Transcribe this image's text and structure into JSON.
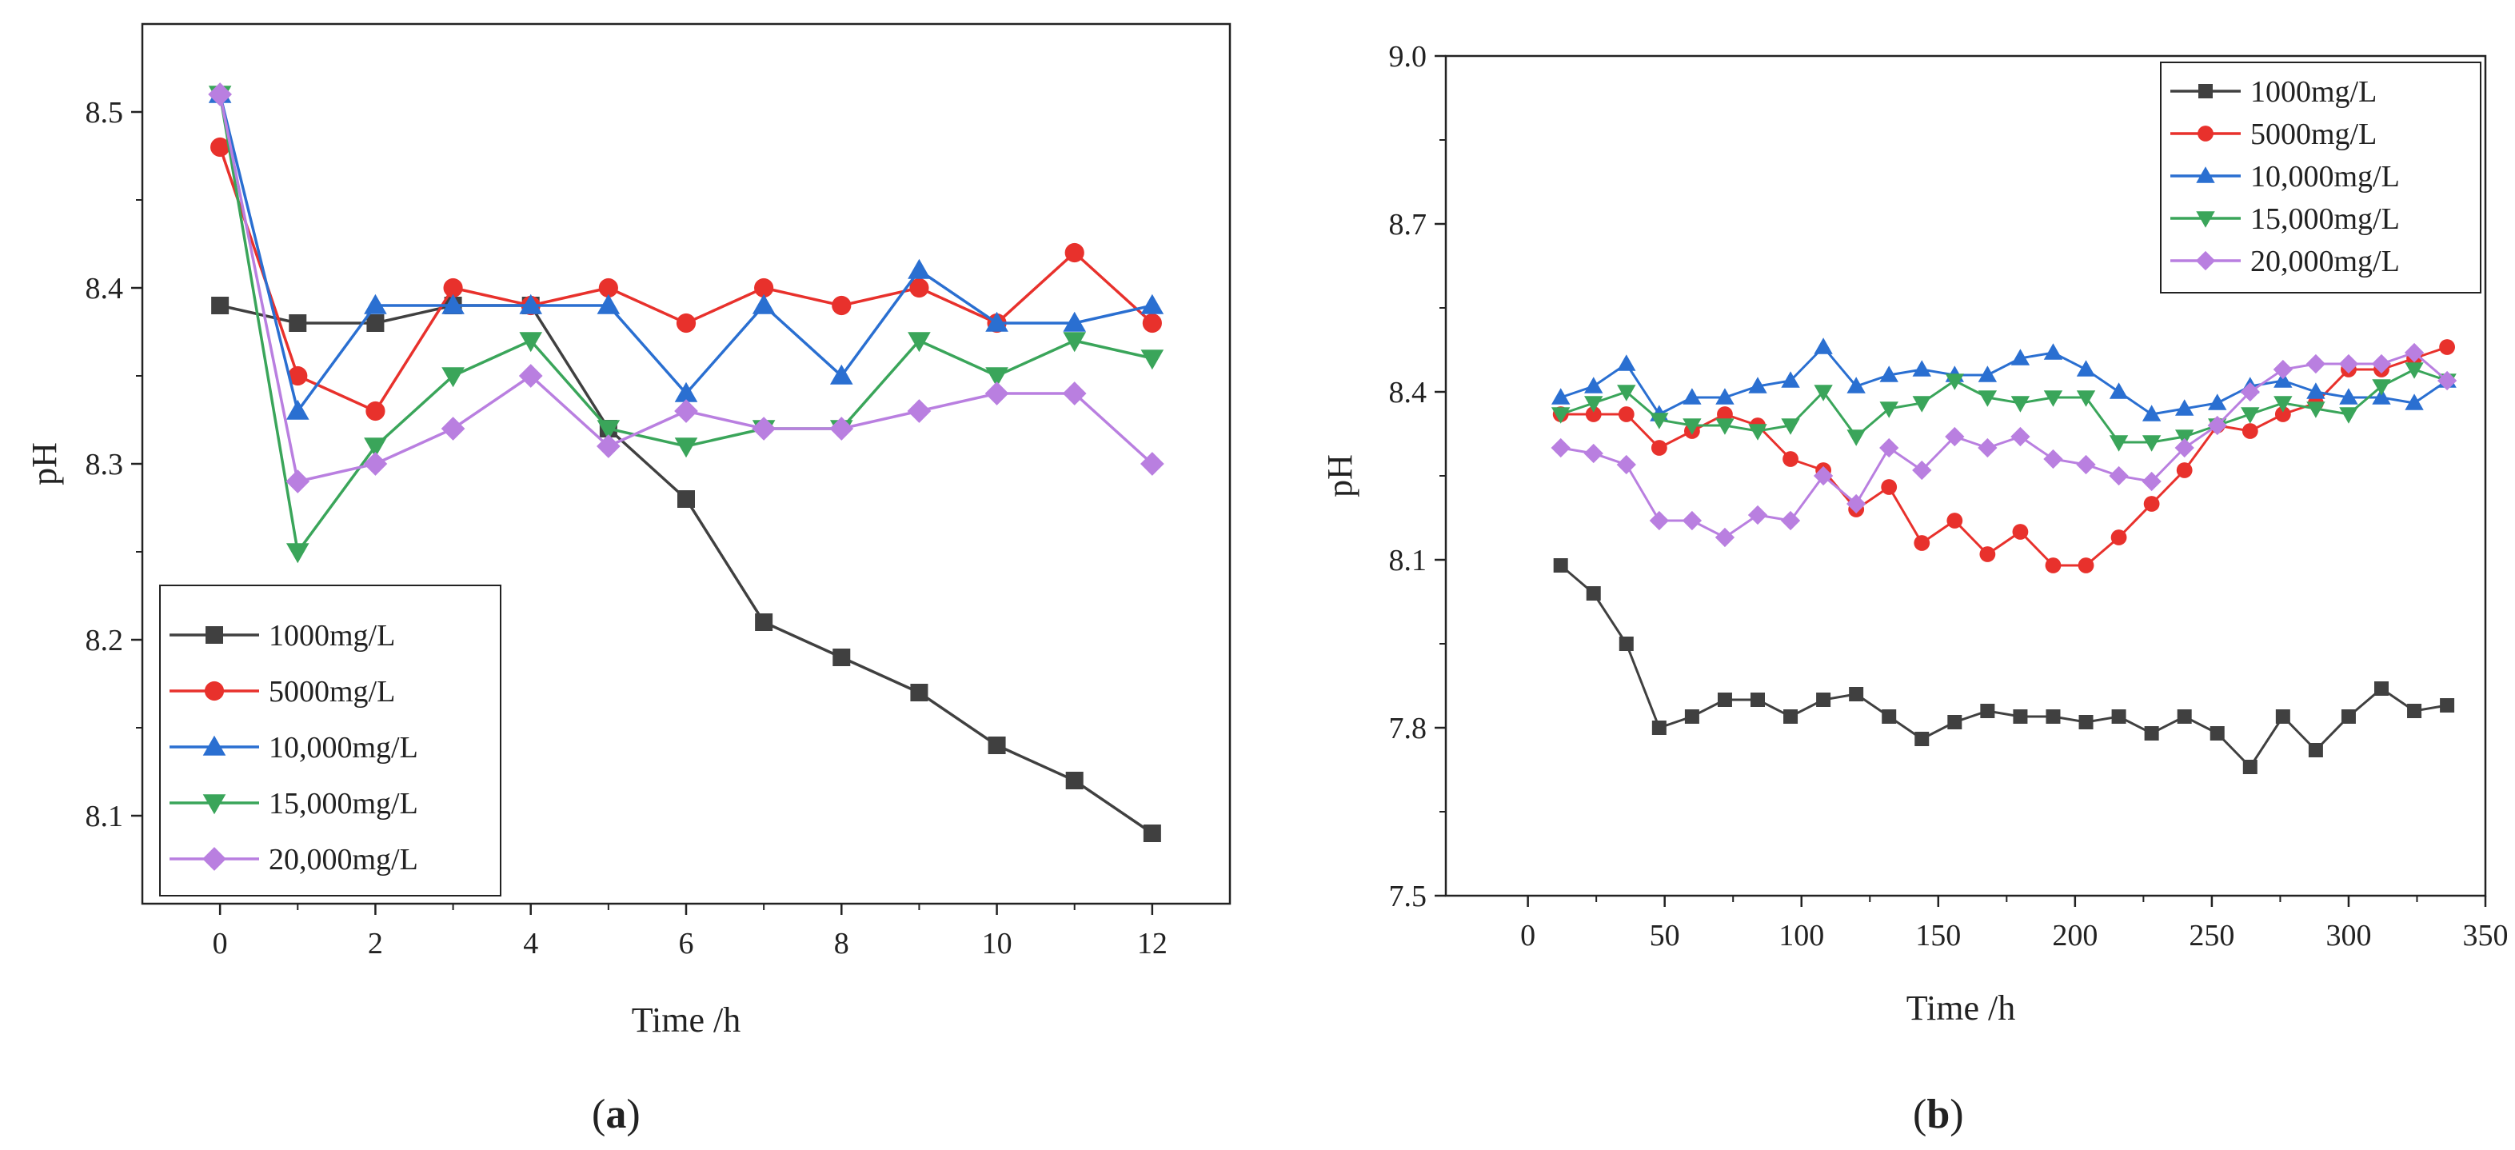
{
  "chart_data": [
    {
      "type": "line",
      "panel": "a",
      "caption": {
        "open": "(",
        "letter": "a",
        "close": ")"
      },
      "xlabel": "Time /h",
      "ylabel": "pH",
      "xlim": [
        -1,
        13
      ],
      "ylim": [
        8.05,
        8.55
      ],
      "xticks": [
        0,
        2,
        4,
        6,
        8,
        10,
        12
      ],
      "yticks": [
        8.1,
        8.2,
        8.3,
        8.4,
        8.5
      ],
      "xtick_labels": [
        "0",
        "2",
        "4",
        "6",
        "8",
        "10",
        "12"
      ],
      "ytick_labels": [
        "8.1",
        "8.2",
        "8.3",
        "8.4",
        "8.5"
      ],
      "grid": false,
      "legend_position": "bottom-left",
      "x": [
        0,
        1,
        2,
        3,
        4,
        5,
        6,
        7,
        8,
        9,
        10,
        11,
        12
      ],
      "series": [
        {
          "name": "1000mg/L",
          "color": "#404040",
          "marker": "square",
          "values": [
            8.39,
            8.38,
            8.38,
            8.39,
            8.39,
            8.32,
            8.28,
            8.21,
            8.19,
            8.17,
            8.14,
            8.12,
            8.09
          ]
        },
        {
          "name": "5000mg/L",
          "color": "#e8312c",
          "marker": "circle",
          "values": [
            8.48,
            8.35,
            8.33,
            8.4,
            8.39,
            8.4,
            8.38,
            8.4,
            8.39,
            8.4,
            8.38,
            8.42,
            8.38
          ]
        },
        {
          "name": "10,000mg/L",
          "color": "#2a6fd1",
          "marker": "triangle-up",
          "values": [
            8.51,
            8.33,
            8.39,
            8.39,
            8.39,
            8.39,
            8.34,
            8.39,
            8.35,
            8.41,
            8.38,
            8.38,
            8.39
          ]
        },
        {
          "name": "15,000mg/L",
          "color": "#3aa55a",
          "marker": "triangle-down",
          "values": [
            8.51,
            8.25,
            8.31,
            8.35,
            8.37,
            8.32,
            8.31,
            8.32,
            8.32,
            8.37,
            8.35,
            8.37,
            8.36
          ]
        },
        {
          "name": "20,000mg/L",
          "color": "#b97fe0",
          "marker": "diamond",
          "values": [
            8.51,
            8.29,
            8.3,
            8.32,
            8.35,
            8.31,
            8.33,
            8.32,
            8.32,
            8.33,
            8.34,
            8.34,
            8.3
          ]
        }
      ]
    },
    {
      "type": "line",
      "panel": "b",
      "caption": {
        "open": "(",
        "letter": "b",
        "close": ")"
      },
      "xlabel": "Time /h",
      "ylabel": "pH",
      "xlim": [
        -30,
        350
      ],
      "ylim": [
        7.5,
        9.0
      ],
      "xticks": [
        0,
        50,
        100,
        150,
        200,
        250,
        300,
        350
      ],
      "yticks": [
        7.5,
        7.8,
        8.1,
        8.4,
        8.7,
        9.0
      ],
      "xtick_labels": [
        "0",
        "50",
        "100",
        "150",
        "200",
        "250",
        "300",
        "350"
      ],
      "ytick_labels": [
        "7.5",
        "7.8",
        "8.1",
        "8.4",
        "8.7",
        "9.0"
      ],
      "grid": false,
      "legend_position": "top-right",
      "x": [
        12,
        24,
        36,
        48,
        60,
        72,
        84,
        96,
        108,
        120,
        132,
        144,
        156,
        168,
        180,
        192,
        204,
        216,
        228,
        240,
        252,
        264,
        276,
        288,
        300,
        312,
        324,
        336
      ],
      "series": [
        {
          "name": "1000mg/L",
          "color": "#404040",
          "marker": "square",
          "values": [
            8.09,
            8.04,
            7.95,
            7.8,
            7.82,
            7.85,
            7.85,
            7.82,
            7.85,
            7.86,
            7.82,
            7.78,
            7.81,
            7.83,
            7.82,
            7.82,
            7.81,
            7.82,
            7.79,
            7.82,
            7.79,
            7.73,
            7.82,
            7.76,
            7.82,
            7.87,
            7.83,
            7.84
          ]
        },
        {
          "name": "5000mg/L",
          "color": "#e8312c",
          "marker": "circle",
          "values": [
            8.36,
            8.36,
            8.36,
            8.3,
            8.33,
            8.36,
            8.34,
            8.28,
            8.26,
            8.19,
            8.23,
            8.13,
            8.17,
            8.11,
            8.15,
            8.09,
            8.09,
            8.14,
            8.2,
            8.26,
            8.34,
            8.33,
            8.36,
            8.38,
            8.44,
            8.44,
            8.46,
            8.48
          ]
        },
        {
          "name": "10,000mg/L",
          "color": "#2a6fd1",
          "marker": "triangle-up",
          "values": [
            8.39,
            8.41,
            8.45,
            8.36,
            8.39,
            8.39,
            8.41,
            8.42,
            8.48,
            8.41,
            8.43,
            8.44,
            8.43,
            8.43,
            8.46,
            8.47,
            8.44,
            8.4,
            8.36,
            8.37,
            8.38,
            8.41,
            8.42,
            8.4,
            8.39,
            8.39,
            8.38,
            8.42
          ]
        },
        {
          "name": "15,000mg/L",
          "color": "#3aa55a",
          "marker": "triangle-down",
          "values": [
            8.36,
            8.38,
            8.4,
            8.35,
            8.34,
            8.34,
            8.33,
            8.34,
            8.4,
            8.32,
            8.37,
            8.38,
            8.42,
            8.39,
            8.38,
            8.39,
            8.39,
            8.31,
            8.31,
            8.32,
            8.34,
            8.36,
            8.38,
            8.37,
            8.36,
            8.41,
            8.44,
            8.42
          ]
        },
        {
          "name": "20,000mg/L",
          "color": "#b97fe0",
          "marker": "diamond",
          "values": [
            8.3,
            8.29,
            8.27,
            8.17,
            8.17,
            8.14,
            8.18,
            8.17,
            8.25,
            8.2,
            8.3,
            8.26,
            8.32,
            8.3,
            8.32,
            8.28,
            8.27,
            8.25,
            8.24,
            8.3,
            8.34,
            8.4,
            8.44,
            8.45,
            8.45,
            8.45,
            8.47,
            8.42
          ]
        }
      ]
    }
  ]
}
